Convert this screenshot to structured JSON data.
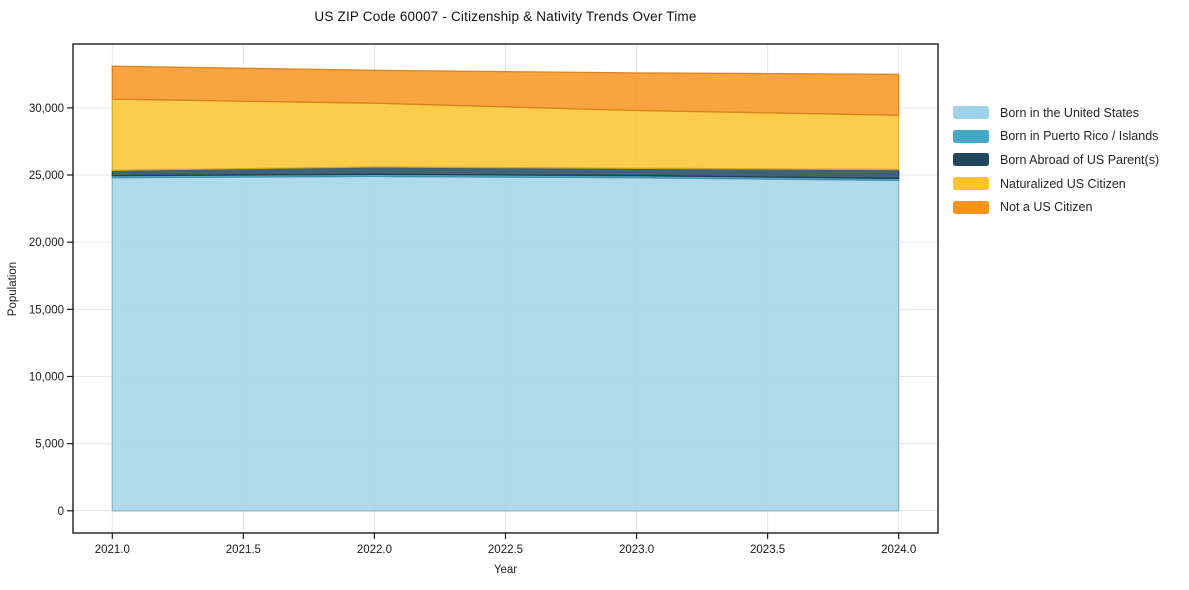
{
  "chart_data": {
    "type": "area",
    "stacked": true,
    "title": "US ZIP Code 60007 - Citizenship & Nativity Trends Over Time",
    "xlabel": "Year",
    "ylabel": "Population",
    "x": [
      2021,
      2022,
      2023,
      2024
    ],
    "series": [
      {
        "name": "Born in the United States",
        "color": "#a0d3e8",
        "values": [
          24800,
          24900,
          24800,
          24600
        ]
      },
      {
        "name": "Born in Puerto Rico / Islands",
        "color": "#46a8c4",
        "values": [
          150,
          150,
          150,
          150
        ]
      },
      {
        "name": "Born Abroad of US Parent(s)",
        "color": "#1f485e",
        "values": [
          400,
          550,
          550,
          650
        ]
      },
      {
        "name": "Naturalized US Citizen",
        "color": "#fcc32d",
        "values": [
          5300,
          4750,
          4300,
          4050
        ]
      },
      {
        "name": "Not a US Citizen",
        "color": "#f7941e",
        "values": [
          2450,
          2450,
          2800,
          3050
        ]
      }
    ],
    "stacked_totals": [
      33100,
      32800,
      32600,
      32500
    ],
    "xlim": [
      2020.85,
      2024.15
    ],
    "ylim": [
      -1655,
      34755
    ],
    "x_ticks": [
      {
        "v": 2021.0,
        "label": "2021.0"
      },
      {
        "v": 2021.5,
        "label": "2021.5"
      },
      {
        "v": 2022.0,
        "label": "2022.0"
      },
      {
        "v": 2022.5,
        "label": "2022.5"
      },
      {
        "v": 2023.0,
        "label": "2023.0"
      },
      {
        "v": 2023.5,
        "label": "2023.5"
      },
      {
        "v": 2024.0,
        "label": "2024.0"
      }
    ],
    "y_ticks": [
      {
        "v": 0,
        "label": "0"
      },
      {
        "v": 5000,
        "label": "5,000"
      },
      {
        "v": 10000,
        "label": "10,000"
      },
      {
        "v": 15000,
        "label": "15,000"
      },
      {
        "v": 20000,
        "label": "20,000"
      },
      {
        "v": 25000,
        "label": "25,000"
      },
      {
        "v": 30000,
        "label": "30,000"
      }
    ],
    "grid": true,
    "legend_position": "right",
    "colors": {
      "grid": "#e7e7e7",
      "spine": "#1c1c1c",
      "tick_label": "#1a1a1a",
      "background": "#ffffff"
    }
  }
}
